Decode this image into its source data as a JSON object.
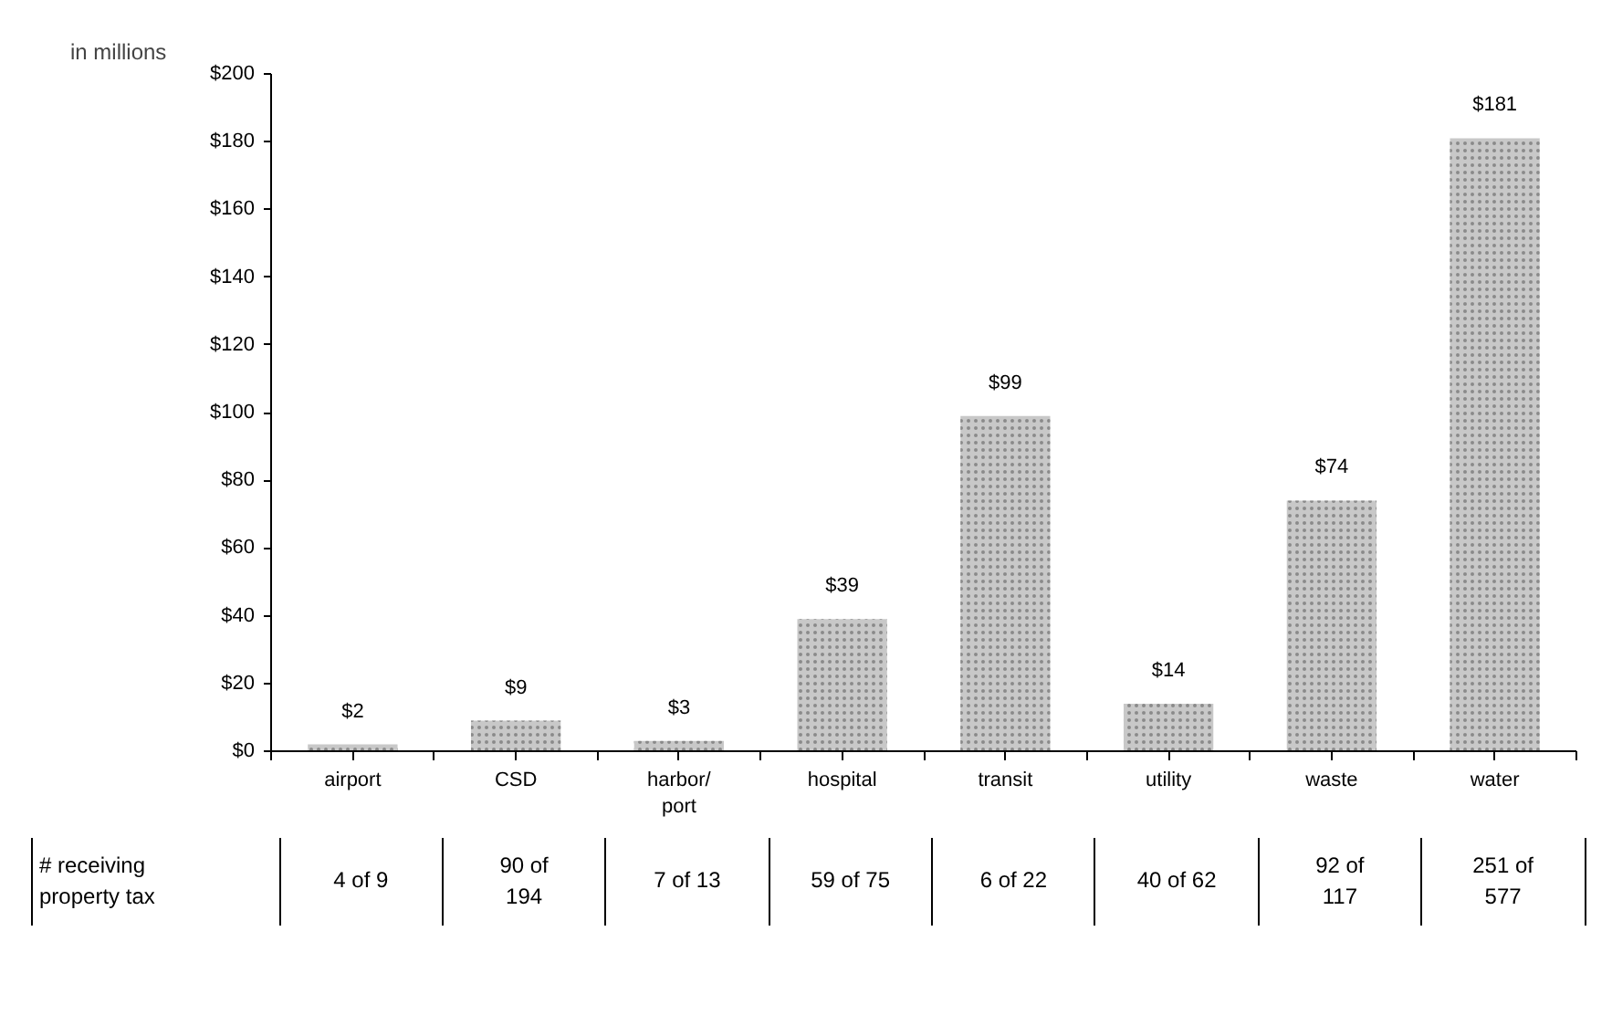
{
  "chart_data": {
    "type": "bar",
    "ylabel": "in millions",
    "categories": [
      "airport",
      "CSD",
      "harbor/\nport",
      "hospital",
      "transit",
      "utility",
      "waste",
      "water"
    ],
    "values": [
      2,
      9,
      3,
      39,
      99,
      14,
      74,
      181
    ],
    "value_labels": [
      "$2",
      "$9",
      "$3",
      "$39",
      "$99",
      "$14",
      "$74",
      "$181"
    ],
    "color": "#c8c8c8",
    "ylim": [
      0,
      200
    ],
    "yticks": [
      {
        "value": 0,
        "label": "$0"
      },
      {
        "value": 20,
        "label": "$20"
      },
      {
        "value": 40,
        "label": "$40"
      },
      {
        "value": 60,
        "label": "$60"
      },
      {
        "value": 80,
        "label": "$80"
      },
      {
        "value": 100,
        "label": "$100"
      },
      {
        "value": 120,
        "label": "$120"
      },
      {
        "value": 140,
        "label": "$140"
      },
      {
        "value": 160,
        "label": "$160"
      },
      {
        "value": 180,
        "label": "$180"
      },
      {
        "value": 200,
        "label": "$200"
      }
    ],
    "grid": false,
    "annotations": [
      "# receiving\nproperty tax",
      "4 of 9",
      "90 of\n194",
      "7 of 13",
      "59 of 75",
      "6 of 22",
      "40 of 62",
      "92 of\n117",
      "251 of\n577"
    ]
  }
}
